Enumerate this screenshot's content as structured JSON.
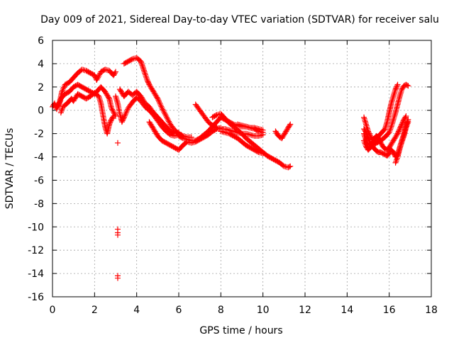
{
  "chart_data": {
    "type": "scatter",
    "title": "Day 009 of 2021, Sidereal Day-to-day VTEC variation (SDTVAR) for receiver salu",
    "xlabel": "GPS time / hours",
    "ylabel": "SDTVAR / TECUs",
    "xlim": [
      0,
      18
    ],
    "ylim": [
      -16,
      6
    ],
    "xticks": [
      0,
      2,
      4,
      6,
      8,
      10,
      12,
      14,
      16,
      18
    ],
    "yticks": [
      -16,
      -14,
      -12,
      -10,
      -8,
      -6,
      -4,
      -2,
      0,
      2,
      4,
      6
    ],
    "grid": true,
    "marker": "+",
    "series_color": "#ff0000",
    "segments": [
      [
        [
          0.0,
          0.3
        ],
        [
          0.1,
          0.6
        ],
        [
          0.2,
          0.1
        ],
        [
          0.35,
          0.8
        ],
        [
          0.45,
          1.6
        ],
        [
          0.6,
          2.2
        ],
        [
          0.8,
          2.4
        ],
        [
          1.0,
          2.8
        ],
        [
          1.2,
          3.2
        ],
        [
          1.4,
          3.5
        ],
        [
          1.6,
          3.4
        ],
        [
          1.8,
          3.2
        ],
        [
          2.0,
          3.0
        ],
        [
          2.1,
          2.6
        ],
        [
          2.3,
          3.3
        ],
        [
          2.5,
          3.5
        ],
        [
          2.7,
          3.4
        ],
        [
          2.9,
          3.0
        ],
        [
          3.0,
          3.3
        ]
      ],
      [
        [
          0.3,
          0.4
        ],
        [
          0.4,
          1.0
        ],
        [
          0.6,
          1.4
        ],
        [
          0.8,
          1.6
        ],
        [
          1.0,
          2.0
        ],
        [
          1.2,
          2.2
        ],
        [
          1.4,
          2.0
        ],
        [
          1.6,
          1.8
        ],
        [
          1.8,
          1.6
        ],
        [
          2.0,
          1.4
        ],
        [
          2.1,
          1.6
        ],
        [
          2.3,
          2.0
        ],
        [
          2.5,
          1.6
        ],
        [
          2.7,
          1.0
        ],
        [
          2.8,
          0.2
        ],
        [
          3.0,
          -0.5
        ]
      ],
      [
        [
          0.4,
          -0.2
        ],
        [
          0.5,
          0.3
        ],
        [
          0.7,
          0.6
        ],
        [
          0.9,
          1.0
        ],
        [
          1.0,
          0.8
        ],
        [
          1.2,
          1.4
        ],
        [
          1.4,
          1.2
        ],
        [
          1.6,
          1.0
        ],
        [
          1.8,
          1.2
        ],
        [
          2.0,
          1.5
        ],
        [
          2.2,
          1.2
        ],
        [
          2.3,
          0.6
        ],
        [
          2.4,
          -0.4
        ],
        [
          2.5,
          -1.4
        ],
        [
          2.6,
          -2.0
        ],
        [
          2.7,
          -1.2
        ],
        [
          2.8,
          -0.8
        ],
        [
          2.9,
          -0.5
        ]
      ],
      [
        [
          3.0,
          1.2
        ],
        [
          3.1,
          0.6
        ],
        [
          3.2,
          -0.3
        ],
        [
          3.3,
          -1.0
        ],
        [
          3.4,
          -0.6
        ],
        [
          3.6,
          0.2
        ],
        [
          3.8,
          0.7
        ],
        [
          4.0,
          1.1
        ],
        [
          4.2,
          0.8
        ],
        [
          4.4,
          0.3
        ],
        [
          4.6,
          0.0
        ],
        [
          4.8,
          -0.4
        ],
        [
          5.0,
          -0.9
        ],
        [
          5.2,
          -1.4
        ],
        [
          5.4,
          -1.8
        ],
        [
          5.6,
          -2.1
        ],
        [
          5.8,
          -2.2
        ],
        [
          6.0,
          -2.1
        ]
      ],
      [
        [
          3.2,
          1.8
        ],
        [
          3.4,
          1.2
        ],
        [
          3.6,
          1.6
        ],
        [
          3.8,
          1.3
        ],
        [
          4.0,
          1.6
        ],
        [
          4.2,
          1.2
        ],
        [
          4.4,
          0.6
        ],
        [
          4.6,
          0.3
        ],
        [
          4.8,
          -0.2
        ],
        [
          5.0,
          -0.6
        ],
        [
          5.2,
          -1.0
        ],
        [
          5.4,
          -1.4
        ],
        [
          5.6,
          -1.8
        ],
        [
          5.8,
          -2.0
        ],
        [
          6.0,
          -1.9
        ]
      ],
      [
        [
          3.4,
          4.0
        ],
        [
          3.6,
          4.2
        ],
        [
          3.8,
          4.4
        ],
        [
          4.0,
          4.5
        ],
        [
          4.2,
          4.2
        ],
        [
          4.35,
          3.4
        ],
        [
          4.5,
          2.6
        ],
        [
          4.6,
          2.2
        ],
        [
          4.8,
          1.6
        ],
        [
          5.0,
          1.0
        ],
        [
          5.2,
          0.2
        ],
        [
          5.4,
          -0.5
        ],
        [
          5.6,
          -1.2
        ],
        [
          5.8,
          -1.7
        ],
        [
          6.0,
          -2.0
        ],
        [
          6.2,
          -2.2
        ],
        [
          6.4,
          -2.3
        ],
        [
          6.6,
          -2.3
        ]
      ],
      [
        [
          4.6,
          -1.0
        ],
        [
          4.8,
          -1.6
        ],
        [
          5.0,
          -2.2
        ],
        [
          5.2,
          -2.6
        ],
        [
          5.4,
          -2.8
        ],
        [
          5.6,
          -3.0
        ],
        [
          5.8,
          -3.2
        ],
        [
          6.0,
          -3.4
        ],
        [
          6.2,
          -3.0
        ],
        [
          6.4,
          -2.7
        ],
        [
          6.6,
          -2.8
        ],
        [
          6.8,
          -2.7
        ],
        [
          7.0,
          -2.5
        ],
        [
          7.2,
          -2.3
        ],
        [
          7.4,
          -2.1
        ],
        [
          7.6,
          -1.8
        ],
        [
          7.8,
          -1.6
        ],
        [
          8.0,
          -1.5
        ]
      ],
      [
        [
          6.0,
          -2.2
        ],
        [
          6.2,
          -2.4
        ],
        [
          6.4,
          -2.5
        ],
        [
          6.6,
          -2.6
        ],
        [
          6.8,
          -2.6
        ],
        [
          7.0,
          -2.4
        ],
        [
          7.2,
          -2.1
        ],
        [
          7.4,
          -1.8
        ],
        [
          7.6,
          -1.4
        ],
        [
          7.8,
          -1.0
        ],
        [
          8.0,
          -0.6
        ],
        [
          8.2,
          -0.8
        ],
        [
          8.4,
          -1.0
        ],
        [
          8.6,
          -1.2
        ],
        [
          8.8,
          -1.3
        ],
        [
          9.0,
          -1.4
        ],
        [
          9.2,
          -1.4
        ],
        [
          9.4,
          -1.5
        ],
        [
          9.6,
          -1.6
        ],
        [
          9.8,
          -1.8
        ],
        [
          10.0,
          -1.9
        ]
      ],
      [
        [
          6.8,
          0.5
        ],
        [
          7.0,
          0.0
        ],
        [
          7.2,
          -0.5
        ],
        [
          7.4,
          -1.0
        ],
        [
          7.6,
          -1.3
        ],
        [
          7.8,
          -1.5
        ],
        [
          8.0,
          -1.6
        ],
        [
          8.2,
          -1.6
        ],
        [
          8.4,
          -1.7
        ],
        [
          8.6,
          -1.8
        ],
        [
          8.8,
          -1.9
        ],
        [
          9.0,
          -2.0
        ],
        [
          9.2,
          -2.0
        ],
        [
          9.4,
          -2.1
        ],
        [
          9.6,
          -2.2
        ],
        [
          9.8,
          -2.2
        ],
        [
          10.0,
          -2.1
        ]
      ],
      [
        [
          7.6,
          -0.6
        ],
        [
          7.8,
          -0.4
        ],
        [
          8.0,
          -0.3
        ],
        [
          8.2,
          -0.7
        ],
        [
          8.4,
          -1.1
        ],
        [
          8.6,
          -1.4
        ],
        [
          8.8,
          -1.7
        ],
        [
          9.0,
          -2.0
        ],
        [
          9.2,
          -2.4
        ],
        [
          9.4,
          -2.7
        ],
        [
          9.6,
          -3.0
        ],
        [
          9.8,
          -3.3
        ],
        [
          10.0,
          -3.6
        ],
        [
          10.2,
          -3.9
        ],
        [
          10.4,
          -4.1
        ],
        [
          10.6,
          -4.3
        ],
        [
          10.8,
          -4.5
        ],
        [
          11.0,
          -4.8
        ],
        [
          11.2,
          -4.9
        ],
        [
          11.3,
          -4.8
        ]
      ],
      [
        [
          8.0,
          -1.8
        ],
        [
          8.2,
          -1.9
        ],
        [
          8.4,
          -2.0
        ],
        [
          8.6,
          -2.2
        ],
        [
          8.8,
          -2.4
        ],
        [
          9.0,
          -2.7
        ],
        [
          9.2,
          -3.0
        ],
        [
          9.4,
          -3.2
        ],
        [
          9.6,
          -3.4
        ],
        [
          9.8,
          -3.6
        ],
        [
          10.0,
          -3.7
        ]
      ],
      [
        [
          8.8,
          -1.2
        ],
        [
          9.0,
          -1.3
        ],
        [
          9.2,
          -1.4
        ],
        [
          9.4,
          -1.5
        ],
        [
          9.6,
          -1.5
        ],
        [
          9.8,
          -1.6
        ],
        [
          10.0,
          -1.7
        ]
      ],
      [
        [
          10.6,
          -1.8
        ],
        [
          10.7,
          -2.1
        ],
        [
          10.8,
          -2.3
        ],
        [
          10.9,
          -2.4
        ],
        [
          11.0,
          -2.1
        ],
        [
          11.1,
          -1.8
        ],
        [
          11.2,
          -1.5
        ],
        [
          11.3,
          -1.2
        ]
      ],
      [
        [
          14.8,
          -0.6
        ],
        [
          14.9,
          -1.2
        ],
        [
          15.0,
          -1.8
        ],
        [
          15.1,
          -2.2
        ],
        [
          15.2,
          -2.5
        ],
        [
          15.3,
          -2.4
        ],
        [
          15.4,
          -2.2
        ],
        [
          15.5,
          -2.4
        ],
        [
          15.6,
          -2.8
        ],
        [
          15.7,
          -3.1
        ],
        [
          15.8,
          -3.3
        ],
        [
          15.9,
          -3.4
        ],
        [
          16.0,
          -3.2
        ],
        [
          16.1,
          -2.9
        ],
        [
          16.2,
          -2.6
        ],
        [
          16.3,
          -2.3
        ],
        [
          16.4,
          -2.0
        ],
        [
          16.5,
          -1.6
        ],
        [
          16.6,
          -1.2
        ],
        [
          16.7,
          -0.8
        ],
        [
          16.8,
          -0.5
        ]
      ],
      [
        [
          14.8,
          -1.6
        ],
        [
          14.9,
          -1.9
        ],
        [
          15.0,
          -2.3
        ],
        [
          15.1,
          -2.8
        ],
        [
          15.2,
          -3.1
        ],
        [
          15.3,
          -3.3
        ],
        [
          15.4,
          -3.5
        ],
        [
          15.5,
          -3.6
        ],
        [
          15.6,
          -3.6
        ],
        [
          15.7,
          -3.7
        ],
        [
          15.8,
          -3.8
        ],
        [
          15.9,
          -3.9
        ],
        [
          16.0,
          -3.7
        ],
        [
          16.1,
          -3.4
        ],
        [
          16.2,
          -3.6
        ],
        [
          16.3,
          -4.0
        ],
        [
          16.4,
          -3.8
        ],
        [
          16.5,
          -3.2
        ],
        [
          16.6,
          -2.6
        ],
        [
          16.7,
          -2.0
        ],
        [
          16.8,
          -1.3
        ],
        [
          16.9,
          -0.8
        ]
      ],
      [
        [
          14.8,
          -2.6
        ],
        [
          14.9,
          -3.1
        ],
        [
          15.0,
          -3.4
        ],
        [
          15.1,
          -3.2
        ],
        [
          15.2,
          -3.0
        ],
        [
          15.4,
          -2.8
        ],
        [
          15.6,
          -2.6
        ],
        [
          15.8,
          -2.3
        ],
        [
          16.0,
          -1.9
        ],
        [
          16.1,
          -1.4
        ],
        [
          16.2,
          -0.8
        ],
        [
          16.3,
          -0.2
        ],
        [
          16.4,
          0.5
        ],
        [
          16.5,
          1.2
        ],
        [
          16.6,
          1.8
        ],
        [
          16.7,
          2.1
        ],
        [
          16.8,
          2.2
        ],
        [
          16.9,
          2.1
        ]
      ],
      [
        [
          14.8,
          -2.0
        ],
        [
          14.9,
          -2.6
        ],
        [
          15.0,
          -3.0
        ],
        [
          15.2,
          -2.8
        ],
        [
          15.4,
          -2.4
        ],
        [
          15.6,
          -2.0
        ],
        [
          15.8,
          -1.6
        ],
        [
          15.9,
          -1.0
        ],
        [
          16.0,
          -0.2
        ],
        [
          16.1,
          0.6
        ],
        [
          16.2,
          1.2
        ],
        [
          16.3,
          1.8
        ],
        [
          16.4,
          2.2
        ]
      ],
      [
        [
          16.3,
          -4.5
        ],
        [
          16.4,
          -4.0
        ],
        [
          16.5,
          -3.3
        ],
        [
          16.6,
          -2.7
        ],
        [
          16.7,
          -2.2
        ],
        [
          16.8,
          -1.5
        ],
        [
          16.9,
          -1.0
        ]
      ]
    ],
    "outliers": [
      [
        3.1,
        -2.8
      ],
      [
        3.1,
        -10.2
      ],
      [
        3.1,
        -10.5
      ],
      [
        3.1,
        -10.7
      ],
      [
        3.1,
        -14.2
      ],
      [
        3.1,
        -14.4
      ]
    ]
  }
}
